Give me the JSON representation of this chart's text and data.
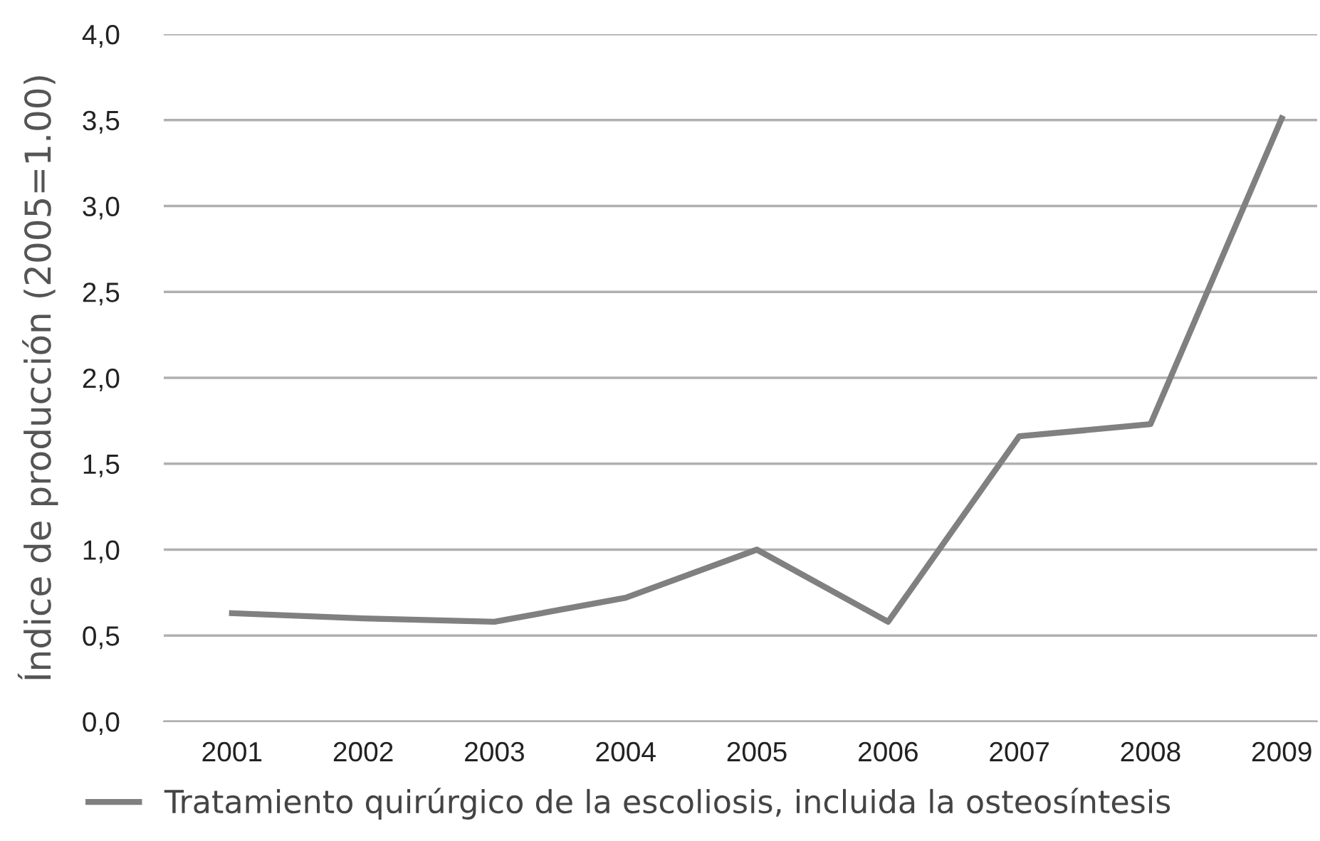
{
  "chart_data": {
    "type": "line",
    "ylabel": "Índice de producción (2005=1.00)",
    "categories": [
      "2001",
      "2002",
      "2003",
      "2004",
      "2005",
      "2006",
      "2007",
      "2008",
      "2009"
    ],
    "series": [
      {
        "name": "Tratamiento quirúrgico de la escoliosis, incluida la osteosíntesis",
        "color": "#808080",
        "values": [
          0.63,
          0.6,
          0.58,
          0.72,
          1.0,
          0.58,
          1.66,
          1.73,
          3.51
        ]
      }
    ],
    "ylim": [
      0,
      4
    ],
    "yticks": [
      {
        "value": 0,
        "label": "0,0"
      },
      {
        "value": 0.5,
        "label": "0,5"
      },
      {
        "value": 1,
        "label": "1,0"
      },
      {
        "value": 1.5,
        "label": "1,5"
      },
      {
        "value": 2,
        "label": "2,0"
      },
      {
        "value": 2.5,
        "label": "2,5"
      },
      {
        "value": 3,
        "label": "3,0"
      },
      {
        "value": 3.5,
        "label": "3,5"
      },
      {
        "value": 4,
        "label": "4,0"
      }
    ],
    "grid": "y",
    "legend": "bottom",
    "marker": "none",
    "line_style": "solid"
  }
}
